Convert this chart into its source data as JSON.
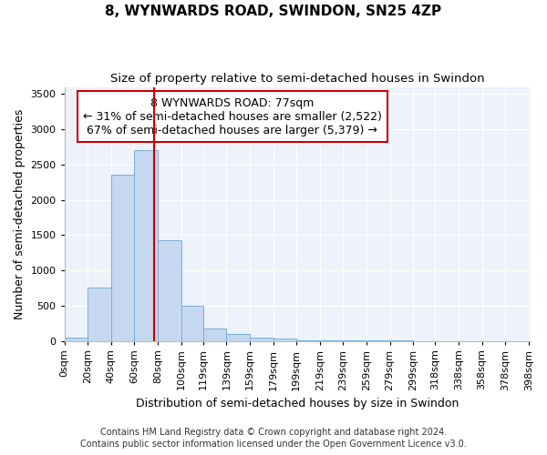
{
  "title": "8, WYNWARDS ROAD, SWINDON, SN25 4ZP",
  "subtitle": "Size of property relative to semi-detached houses in Swindon",
  "xlabel": "Distribution of semi-detached houses by size in Swindon",
  "ylabel": "Number of semi-detached properties",
  "footnote1": "Contains HM Land Registry data © Crown copyright and database right 2024.",
  "footnote2": "Contains public sector information licensed under the Open Government Licence v3.0.",
  "annotation_line1": "8 WYNWARDS ROAD: 77sqm",
  "annotation_line2": "← 31% of semi-detached houses are smaller (2,522)",
  "annotation_line3": "67% of semi-detached houses are larger (5,379) →",
  "property_size": 77,
  "bar_left_edges": [
    0,
    20,
    40,
    60,
    80,
    100,
    119,
    139,
    159,
    179,
    199,
    219,
    239,
    259,
    279,
    299,
    318,
    338,
    358,
    378
  ],
  "bar_widths": [
    20,
    20,
    20,
    20,
    20,
    19,
    20,
    20,
    20,
    20,
    20,
    20,
    20,
    20,
    20,
    19,
    20,
    20,
    20,
    20
  ],
  "bar_heights": [
    50,
    750,
    2350,
    2700,
    1430,
    500,
    175,
    100,
    50,
    30,
    10,
    5,
    2,
    1,
    1,
    0,
    0,
    0,
    0,
    0
  ],
  "bar_color": "#c5d8f0",
  "bar_edge_color": "#7aaed6",
  "marker_color": "#cc0000",
  "annotation_box_color": "#ffffff",
  "annotation_box_edge": "#cc0000",
  "background_color": "#eef2fb",
  "ylim": [
    0,
    3600
  ],
  "yticks": [
    0,
    500,
    1000,
    1500,
    2000,
    2500,
    3000,
    3500
  ],
  "xlabels": [
    "0sqm",
    "20sqm",
    "40sqm",
    "60sqm",
    "80sqm",
    "100sqm",
    "119sqm",
    "139sqm",
    "159sqm",
    "179sqm",
    "199sqm",
    "219sqm",
    "239sqm",
    "259sqm",
    "279sqm",
    "299sqm",
    "318sqm",
    "338sqm",
    "358sqm",
    "378sqm",
    "398sqm"
  ],
  "title_fontsize": 11,
  "subtitle_fontsize": 9.5,
  "axis_label_fontsize": 9,
  "tick_fontsize": 8,
  "annotation_fontsize": 9,
  "footnote_fontsize": 7
}
